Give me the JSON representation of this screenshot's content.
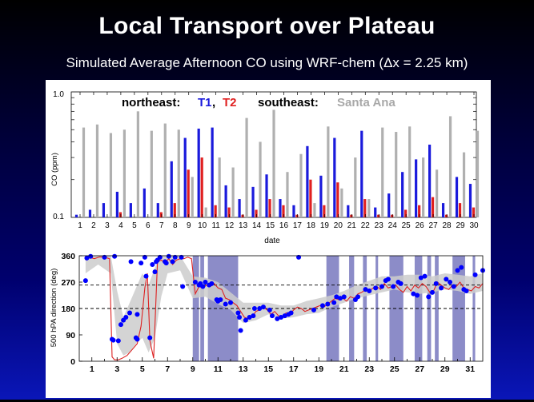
{
  "slide": {
    "title": "Local Transport over Plateau",
    "subtitle": "Simulated Average Afternoon CO using WRF-chem (Δx = 2.25 km)"
  },
  "colors": {
    "t1": "#1a1adc",
    "t2": "#e02020",
    "santa_ana": "#b0b0b0",
    "shade": "#8c8cc8",
    "spread": "#cccccc"
  },
  "chart_data": [
    {
      "type": "bar",
      "legend": {
        "northeast_label": "northeast:",
        "t1_label": "T1",
        "separator": ",",
        "t2_label": "T2",
        "southeast_label": "southeast:",
        "santa_ana_label": "Santa Ana"
      },
      "xlabel": "date",
      "ylabel": "CO (ppm)",
      "yscale": "log",
      "ylim": [
        0.1,
        1.0
      ],
      "ytick_labels": [
        "0.1",
        "1.0"
      ],
      "categories": [
        "1",
        "2",
        "3",
        "4",
        "5",
        "6",
        "7",
        "8",
        "9",
        "10",
        "11",
        "12",
        "13",
        "14",
        "15",
        "16",
        "17",
        "18",
        "19",
        "20",
        "21",
        "22",
        "23",
        "24",
        "25",
        "26",
        "27",
        "28",
        "29",
        "30"
      ],
      "series": [
        {
          "name": "T1",
          "color": "#1a1adc",
          "values": [
            0.105,
            0.115,
            0.13,
            0.16,
            0.13,
            0.17,
            0.13,
            0.28,
            0.43,
            0.51,
            0.52,
            0.18,
            0.14,
            0.175,
            0.22,
            0.14,
            0.125,
            0.37,
            0.215,
            0.43,
            0.125,
            0.49,
            0.12,
            0.155,
            0.23,
            0.29,
            0.38,
            0.13,
            0.21,
            0.185
          ]
        },
        {
          "name": "T2",
          "color": "#e02020",
          "values": [
            null,
            null,
            null,
            0.11,
            null,
            null,
            0.11,
            0.13,
            0.24,
            0.3,
            0.125,
            0.12,
            0.105,
            0.115,
            0.14,
            0.125,
            0.105,
            0.2,
            0.125,
            0.19,
            0.105,
            0.14,
            0.105,
            0.105,
            0.115,
            0.125,
            0.145,
            0.105,
            0.13,
            0.12
          ]
        },
        {
          "name": "Santa Ana",
          "color": "#b0b0b0",
          "values": [
            0.52,
            0.55,
            0.47,
            0.5,
            0.7,
            0.49,
            0.56,
            0.5,
            0.21,
            0.12,
            0.3,
            0.25,
            0.62,
            0.4,
            0.72,
            0.23,
            0.32,
            0.13,
            0.53,
            0.17,
            0.3,
            0.14,
            0.52,
            0.48,
            0.53,
            0.3,
            0.24,
            0.64,
            0.33,
            0.49
          ]
        }
      ]
    },
    {
      "type": "scatter",
      "xlabel": "",
      "ylabel": "500 hPA direction (deg)",
      "xlim": [
        0,
        32
      ],
      "ylim": [
        0,
        360
      ],
      "ytick_labels": [
        "0",
        "90",
        "180",
        "270",
        "360"
      ],
      "xtick_labels": [
        "1",
        "3",
        "5",
        "7",
        "9",
        "11",
        "13",
        "15",
        "17",
        "19",
        "21",
        "23",
        "25",
        "27",
        "29",
        "31"
      ],
      "reference_lines": [
        180,
        260
      ],
      "shaded_date_ranges": [
        [
          9.0,
          9.5
        ],
        [
          9.6,
          9.9
        ],
        [
          10.2,
          12.6
        ],
        [
          19.6,
          20.6
        ],
        [
          21.4,
          21.8
        ],
        [
          22.5,
          22.8
        ],
        [
          23.5,
          23.7
        ],
        [
          24.6,
          25.7
        ],
        [
          26.6,
          27.2
        ],
        [
          27.6,
          27.9
        ],
        [
          28.2,
          28.5
        ],
        [
          29.6,
          30.6
        ],
        [
          31.2,
          31.4
        ]
      ],
      "points": {
        "x": [
          0.5,
          0.6,
          0.9,
          2.0,
          2.6,
          2.7,
          2.8,
          3.1,
          3.3,
          3.5,
          3.7,
          4.0,
          4.1,
          4.5,
          4.6,
          4.6,
          4.9,
          5.2,
          5.3,
          5.6,
          5.8,
          6.0,
          6.1,
          6.2,
          6.4,
          6.8,
          6.9,
          7.1,
          7.4,
          7.6,
          8.1,
          8.2,
          9.2,
          9.5,
          9.6,
          9.8,
          10.0,
          10.3,
          10.5,
          10.9,
          11.0,
          11.2,
          11.6,
          12.0,
          12.6,
          12.7,
          12.8,
          13.2,
          13.5,
          13.8,
          13.9,
          14.3,
          14.6,
          15.1,
          15.3,
          15.7,
          16.0,
          16.3,
          16.6,
          16.8,
          17.4,
          18.6,
          19.3,
          19.7,
          20.2,
          20.4,
          20.7,
          21.0,
          21.9,
          22.1,
          22.7,
          23.0,
          23.5,
          24.0,
          24.3,
          24.5,
          24.9,
          25.3,
          25.5,
          26.5,
          26.8,
          27.1,
          27.4,
          27.7,
          28.0,
          28.3,
          28.7,
          29.1,
          29.4,
          29.7,
          30.0,
          30.3,
          30.5,
          30.7,
          31.4,
          32.0
        ],
        "y": [
          275,
          352,
          358,
          355,
          75,
          72,
          358,
          70,
          125,
          140,
          150,
          165,
          340,
          80,
          75,
          160,
          335,
          355,
          290,
          80,
          330,
          305,
          340,
          345,
          355,
          340,
          335,
          358,
          340,
          355,
          355,
          255,
          270,
          260,
          265,
          255,
          270,
          260,
          265,
          210,
          205,
          210,
          195,
          200,
          165,
          150,
          105,
          140,
          150,
          155,
          180,
          180,
          185,
          175,
          155,
          145,
          150,
          155,
          160,
          165,
          355,
          175,
          190,
          195,
          200,
          220,
          215,
          220,
          210,
          220,
          245,
          240,
          250,
          255,
          275,
          280,
          255,
          270,
          265,
          230,
          225,
          285,
          290,
          220,
          235,
          265,
          250,
          280,
          270,
          255,
          310,
          320,
          245,
          240,
          295,
          310
        ],
        "marker_color": "#0000ff"
      },
      "line": {
        "x": [
          0.5,
          0.8,
          1.2,
          1.6,
          2.0,
          2.4,
          2.6,
          2.8,
          3.1,
          3.4,
          3.8,
          4.2,
          4.6,
          4.9,
          5.2,
          5.4,
          5.6,
          5.9,
          6.2,
          6.5,
          6.8,
          7.1,
          7.4,
          7.7,
          8.0,
          8.3,
          8.6,
          8.9,
          9.2,
          9.5,
          9.8,
          10.1,
          10.4,
          10.7,
          11.0,
          11.3,
          11.6,
          11.9,
          12.2,
          12.5,
          12.8,
          13.1,
          13.4,
          13.7,
          14.0,
          14.3,
          14.6,
          14.9,
          15.2,
          15.5,
          15.8,
          16.1,
          16.4,
          16.7,
          17.0,
          17.3,
          17.6,
          17.9,
          18.2,
          18.5,
          18.8,
          19.1,
          19.4,
          19.7,
          20.0,
          20.3,
          20.6,
          20.9,
          21.2,
          21.5,
          21.8,
          22.1,
          22.4,
          22.7,
          23.0,
          23.3,
          23.6,
          23.9,
          24.2,
          24.5,
          24.8,
          25.1,
          25.4,
          25.7,
          26.0,
          26.3,
          26.6,
          26.9,
          27.2,
          27.5,
          27.8,
          28.1,
          28.4,
          28.7,
          29.0,
          29.3,
          29.6,
          29.9,
          30.2,
          30.5,
          30.8,
          31.1,
          31.4,
          31.7,
          32.0
        ],
        "y": [
          345,
          355,
          350,
          356,
          355,
          350,
          15,
          5,
          5,
          10,
          20,
          40,
          60,
          120,
          250,
          300,
          70,
          10,
          340,
          345,
          335,
          350,
          330,
          345,
          350,
          350,
          355,
          350,
          230,
          255,
          250,
          260,
          255,
          265,
          250,
          245,
          215,
          210,
          200,
          190,
          170,
          150,
          145,
          150,
          170,
          175,
          185,
          175,
          160,
          170,
          155,
          150,
          165,
          160,
          175,
          185,
          180,
          170,
          175,
          180,
          185,
          190,
          185,
          195,
          205,
          215,
          210,
          215,
          205,
          220,
          215,
          230,
          235,
          245,
          240,
          250,
          255,
          245,
          265,
          250,
          255,
          260,
          245,
          235,
          255,
          240,
          260,
          250,
          265,
          255,
          235,
          240,
          270,
          260,
          250,
          245,
          260,
          255,
          270,
          250,
          245,
          240,
          255,
          250,
          265
        ],
        "color": "#dd2222"
      },
      "spread_band": {
        "x": [
          0.5,
          1.5,
          2.5,
          3.0,
          3.5,
          4.0,
          4.5,
          5.0,
          5.5,
          6.0,
          6.5,
          7.0,
          8.0,
          9.0,
          10.0,
          11.0,
          12.0,
          13.0,
          14.0,
          15.0,
          16.0,
          17.0,
          18.0,
          19.0,
          20.0,
          21.0,
          22.0,
          23.0,
          24.0,
          25.0,
          26.0,
          27.0,
          28.0,
          29.0,
          30.0,
          31.0,
          32.0
        ],
        "lower": [
          300,
          330,
          300,
          60,
          20,
          30,
          60,
          80,
          30,
          80,
          220,
          300,
          310,
          215,
          220,
          195,
          175,
          130,
          140,
          160,
          145,
          150,
          160,
          165,
          185,
          200,
          215,
          225,
          235,
          245,
          235,
          230,
          235,
          245,
          240,
          230,
          240
        ],
        "upper": [
          360,
          360,
          360,
          240,
          150,
          200,
          250,
          300,
          260,
          320,
          360,
          360,
          360,
          290,
          285,
          270,
          235,
          200,
          200,
          200,
          190,
          190,
          205,
          215,
          225,
          240,
          260,
          275,
          290,
          290,
          295,
          295,
          290,
          300,
          295,
          290,
          300
        ]
      }
    }
  ]
}
